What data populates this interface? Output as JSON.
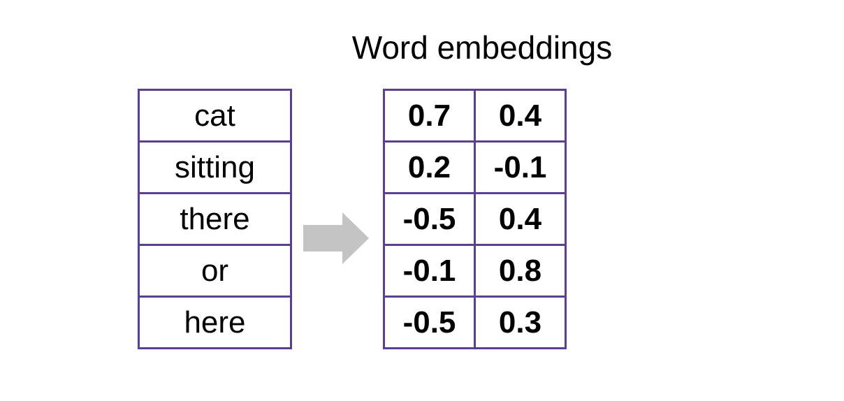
{
  "title": "Word embeddings",
  "words": [
    "cat",
    "sitting",
    "there",
    "or",
    "here"
  ],
  "embeddings": [
    [
      "0.7",
      "0.4"
    ],
    [
      "0.2",
      "-0.1"
    ],
    [
      "-0.5",
      "0.4"
    ],
    [
      "-0.1",
      "0.8"
    ],
    [
      "-0.5",
      "0.3"
    ]
  ],
  "colors": {
    "border": "#5b3f93",
    "arrow": "#c4c4c4",
    "text": "#000000"
  },
  "icons": {
    "arrow": "right-arrow-icon"
  }
}
